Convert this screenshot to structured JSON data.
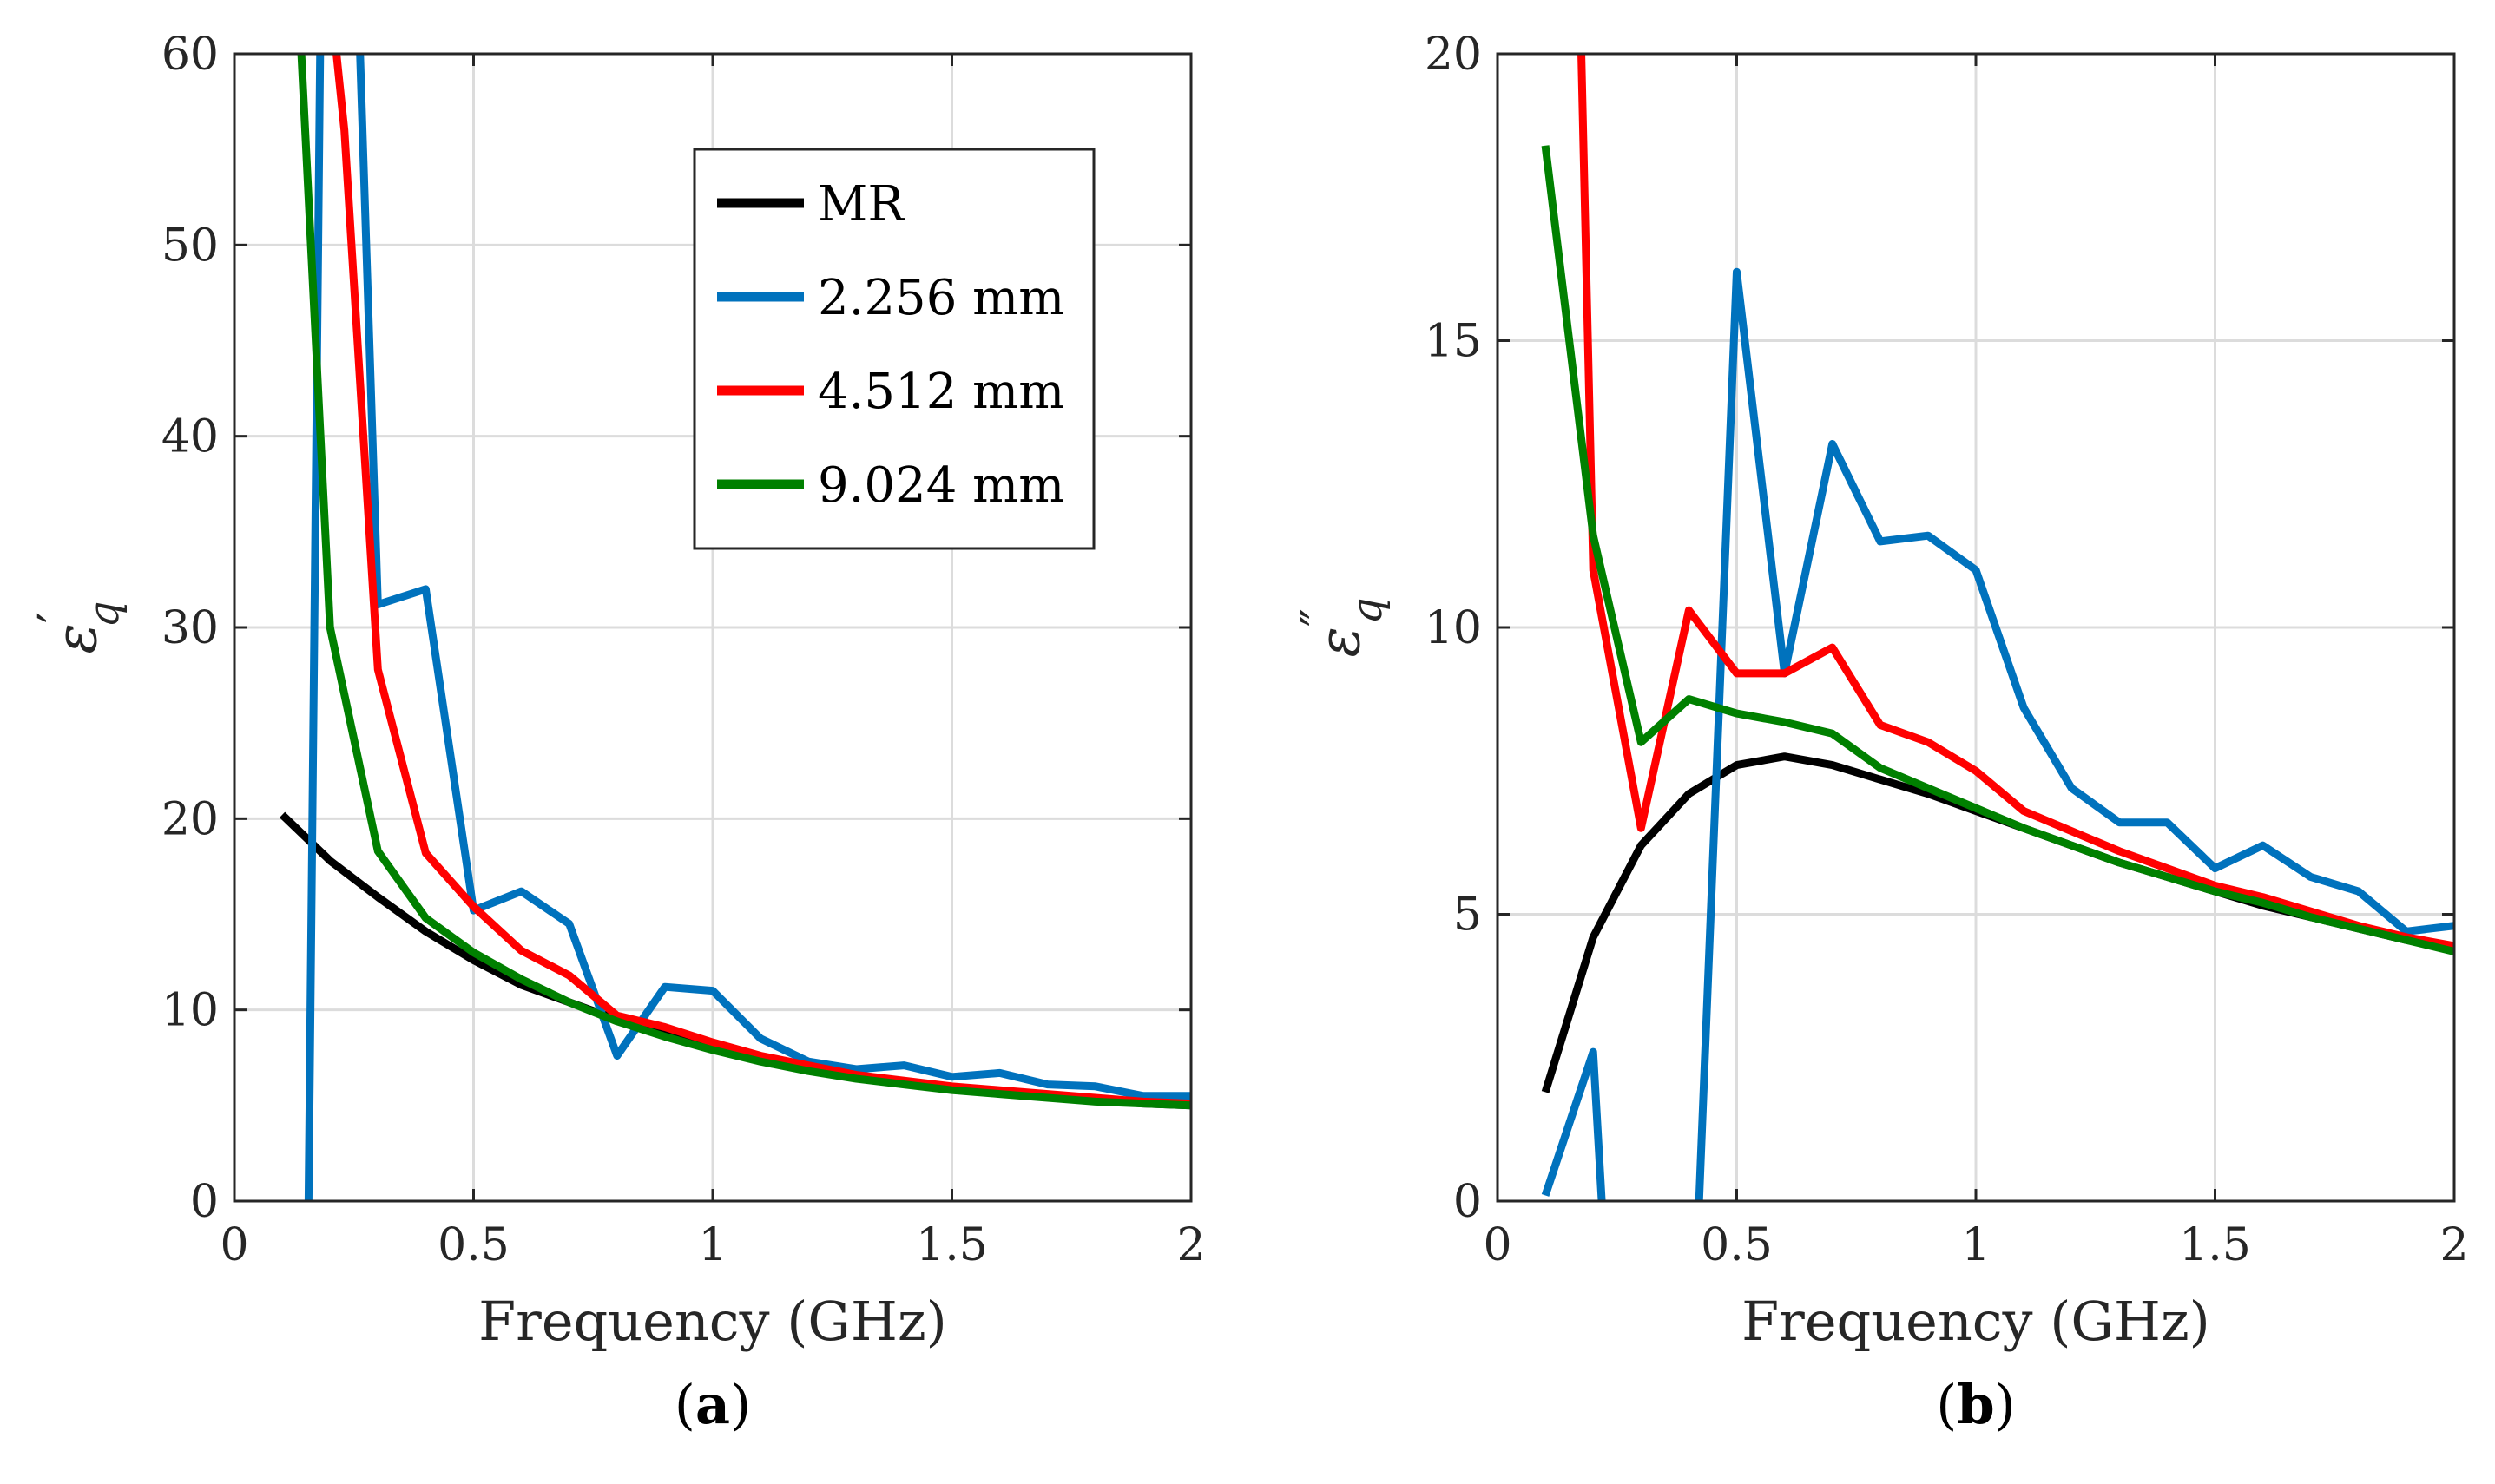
{
  "chart_data": [
    {
      "type": "line",
      "panel_label": "a",
      "xlabel": "Frequency (GHz)",
      "ylabel": "ε′q",
      "ylabel_symbol": "ε",
      "ylabel_prime": "′",
      "ylabel_sub": "q",
      "xlim": [
        0,
        2
      ],
      "ylim": [
        0,
        60
      ],
      "xticks": [
        0,
        0.5,
        1,
        1.5,
        2
      ],
      "xtick_labels": [
        "0",
        "0.5",
        "1",
        "1.5",
        "2"
      ],
      "yticks": [
        0,
        10,
        20,
        30,
        40,
        50,
        60
      ],
      "ytick_labels": [
        "0",
        "10",
        "20",
        "30",
        "40",
        "50",
        "60"
      ],
      "grid": true,
      "legend": {
        "placement": "top-right",
        "entries": [
          "MR",
          "2.256 mm",
          "4.512 mm",
          "9.024 mm"
        ]
      },
      "series": [
        {
          "name": "MR",
          "color": "#000000",
          "x": [
            0.1,
            0.2,
            0.3,
            0.4,
            0.5,
            0.6,
            0.7,
            0.8,
            0.9,
            1.0,
            1.1,
            1.2,
            1.3,
            1.4,
            1.5,
            1.6,
            1.7,
            1.8,
            1.9,
            2.0
          ],
          "y": [
            20.2,
            17.8,
            15.9,
            14.1,
            12.6,
            11.3,
            10.4,
            9.5,
            8.7,
            8.0,
            7.4,
            6.9,
            6.5,
            6.2,
            5.9,
            5.7,
            5.5,
            5.3,
            5.1,
            5.0
          ]
        },
        {
          "name": "2.256 mm",
          "color": "#0072BD",
          "x": [
            0.155,
            0.18,
            0.26,
            0.3,
            0.4,
            0.5,
            0.6,
            0.7,
            0.8,
            0.9,
            1.0,
            1.1,
            1.2,
            1.3,
            1.4,
            1.5,
            1.6,
            1.7,
            1.8,
            1.9,
            2.0
          ],
          "y": [
            0,
            62,
            62,
            31.2,
            32.0,
            15.2,
            16.2,
            14.5,
            7.6,
            11.2,
            11.0,
            8.5,
            7.3,
            6.9,
            7.1,
            6.5,
            6.7,
            6.1,
            6.0,
            5.5,
            5.5
          ]
        },
        {
          "name": "4.512 mm",
          "color": "#FF0000",
          "x": [
            0.205,
            0.23,
            0.3,
            0.4,
            0.5,
            0.6,
            0.7,
            0.8,
            0.9,
            1.0,
            1.1,
            1.2,
            1.3,
            1.4,
            1.5,
            1.6,
            1.7,
            1.8,
            1.9,
            2.0
          ],
          "y": [
            62,
            56,
            27.8,
            18.2,
            15.4,
            13.1,
            11.8,
            9.7,
            9.1,
            8.3,
            7.6,
            7.1,
            6.6,
            6.3,
            6.0,
            5.8,
            5.6,
            5.4,
            5.2,
            5.1
          ]
        },
        {
          "name": "9.024 mm",
          "color": "#008000",
          "x": [
            0.14,
            0.2,
            0.3,
            0.4,
            0.5,
            0.6,
            0.7,
            0.8,
            0.9,
            1.0,
            1.1,
            1.2,
            1.3,
            1.4,
            1.5,
            1.6,
            1.7,
            1.8,
            1.9,
            2.0
          ],
          "y": [
            60,
            30.0,
            18.3,
            14.8,
            13.0,
            11.6,
            10.4,
            9.4,
            8.6,
            7.9,
            7.3,
            6.8,
            6.4,
            6.1,
            5.8,
            5.6,
            5.4,
            5.2,
            5.1,
            5.0
          ]
        }
      ]
    },
    {
      "type": "line",
      "panel_label": "b",
      "xlabel": "Frequency (GHz)",
      "ylabel": "ε″q",
      "ylabel_symbol": "ε",
      "ylabel_prime": "″",
      "ylabel_sub": "q",
      "xlim": [
        0,
        2
      ],
      "ylim": [
        0,
        20
      ],
      "xticks": [
        0,
        0.5,
        1,
        1.5,
        2
      ],
      "xtick_labels": [
        "0",
        "0.5",
        "1",
        "1.5",
        "2"
      ],
      "yticks": [
        0,
        5,
        10,
        15,
        20
      ],
      "ytick_labels": [
        "0",
        "5",
        "10",
        "15",
        "20"
      ],
      "grid": true,
      "series": [
        {
          "name": "MR",
          "color": "#000000",
          "x": [
            0.1,
            0.2,
            0.3,
            0.4,
            0.5,
            0.6,
            0.7,
            0.8,
            0.9,
            1.0,
            1.1,
            1.2,
            1.3,
            1.4,
            1.5,
            1.6,
            1.7,
            1.8,
            1.9,
            2.0
          ],
          "y": [
            1.9,
            4.6,
            6.2,
            7.1,
            7.6,
            7.75,
            7.6,
            7.35,
            7.1,
            6.8,
            6.5,
            6.2,
            5.9,
            5.65,
            5.4,
            5.15,
            4.95,
            4.75,
            4.55,
            4.4
          ]
        },
        {
          "name": "2.256 mm",
          "color": "#0072BD",
          "x": [
            0.1,
            0.2,
            0.22,
            0.42,
            0.5,
            0.6,
            0.7,
            0.8,
            0.9,
            1.0,
            1.1,
            1.2,
            1.3,
            1.4,
            1.5,
            1.6,
            1.7,
            1.8,
            1.9,
            2.0
          ],
          "y": [
            0.1,
            2.6,
            -0.3,
            -0.3,
            16.2,
            9.2,
            13.2,
            11.5,
            11.6,
            11.0,
            8.6,
            7.2,
            6.6,
            6.6,
            5.8,
            6.2,
            5.65,
            5.4,
            4.7,
            4.8
          ]
        },
        {
          "name": "4.512 mm",
          "color": "#FF0000",
          "x": [
            0.175,
            0.2,
            0.3,
            0.4,
            0.5,
            0.6,
            0.7,
            0.8,
            0.9,
            1.0,
            1.1,
            1.2,
            1.3,
            1.4,
            1.5,
            1.6,
            1.7,
            1.8,
            1.9,
            2.0
          ],
          "y": [
            20.1,
            11.0,
            6.5,
            10.3,
            9.2,
            9.2,
            9.65,
            8.3,
            8.0,
            7.5,
            6.8,
            6.45,
            6.1,
            5.8,
            5.5,
            5.3,
            5.05,
            4.8,
            4.6,
            4.45
          ]
        },
        {
          "name": "9.024 mm",
          "color": "#008000",
          "x": [
            0.1,
            0.2,
            0.3,
            0.4,
            0.5,
            0.6,
            0.7,
            0.8,
            0.9,
            1.0,
            1.1,
            1.2,
            1.3,
            1.4,
            1.5,
            1.6,
            1.7,
            1.8,
            1.9,
            2.0
          ],
          "y": [
            18.4,
            11.6,
            8.0,
            8.75,
            8.5,
            8.35,
            8.15,
            7.55,
            7.2,
            6.85,
            6.5,
            6.2,
            5.9,
            5.65,
            5.4,
            5.2,
            4.95,
            4.75,
            4.55,
            4.35
          ]
        }
      ]
    }
  ]
}
